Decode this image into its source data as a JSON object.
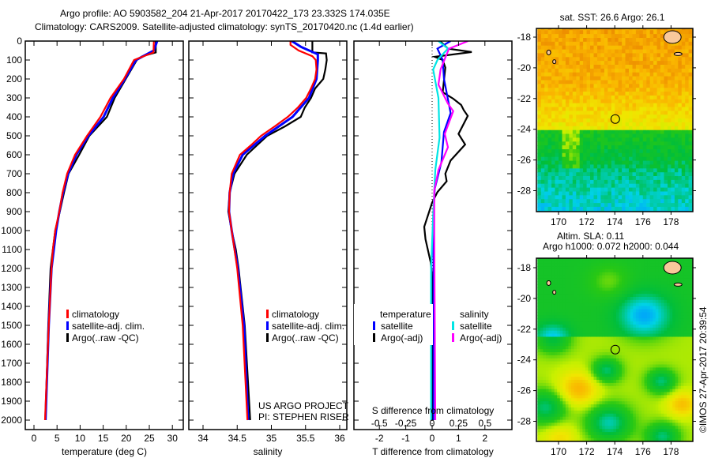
{
  "header": {
    "line1": "Argo profile: AO 5903582_204 21-Apr-2017 20170422_173 23.332S 174.035E",
    "line2": "Climatology: CARS2009. Satellite-adjusted climatology: synTS_20170420.nc (1.4d earlier)"
  },
  "colors": {
    "climatology": "#ff0000",
    "satellite": "#0000ff",
    "argo": "#000000",
    "sal_satellite": "#00e5e5",
    "sal_argo": "#ff00ff"
  },
  "credits": {
    "project": "US ARGO PROJECT",
    "pi": "PI: STEPHEN RISER",
    "copyright": "©IMOS 27-Apr-2017 20:39:54"
  },
  "chart_data": [
    {
      "type": "line",
      "title": "",
      "xlabel": "temperature (deg C)",
      "ylabel": "",
      "xlim": [
        -1.8,
        32.3
      ],
      "ylim": [
        2050,
        0
      ],
      "xticks": [
        "0",
        "5",
        "10",
        "15",
        "20",
        "25",
        "30"
      ],
      "yticks": [
        "0",
        "100",
        "200",
        "300",
        "400",
        "500",
        "600",
        "700",
        "800",
        "900",
        "1000",
        "1100",
        "1200",
        "1300",
        "1400",
        "1500",
        "1600",
        "1700",
        "1800",
        "1900",
        "2000"
      ],
      "legend": [
        "climatology",
        "satellite-adj. clim.",
        "Argo(..raw -QC)"
      ],
      "legend_placement": "lower-center",
      "series": [
        {
          "name": "climatology",
          "depth": [
            0,
            60,
            100,
            200,
            300,
            400,
            500,
            600,
            700,
            800,
            900,
            1000,
            1100,
            1200,
            1500,
            2000
          ],
          "values": [
            26.0,
            25.9,
            21.7,
            19.5,
            16.6,
            14.4,
            11.5,
            8.9,
            7.2,
            6.2,
            5.5,
            4.6,
            4.1,
            3.8,
            3.2,
            2.4
          ]
        },
        {
          "name": "satellite-adj. clim.",
          "depth": [
            0,
            50,
            100,
            200,
            300,
            400,
            500,
            600,
            700,
            800,
            900,
            1000,
            1200,
            1500,
            2000
          ],
          "values": [
            26.7,
            26.0,
            22.1,
            19.7,
            17.1,
            15.1,
            11.8,
            9.2,
            7.4,
            6.3,
            5.5,
            4.8,
            3.8,
            3.2,
            2.5
          ]
        },
        {
          "name": "Argo(..raw -QC)",
          "depth": [
            0,
            60,
            80,
            100,
            200,
            300,
            400,
            500,
            600,
            700,
            800,
            900,
            1000,
            1200,
            1500,
            2000
          ],
          "values": [
            26.4,
            26.4,
            23.5,
            22.3,
            19.9,
            17.5,
            15.8,
            12.0,
            9.8,
            7.5,
            6.5,
            5.6,
            4.6,
            3.6,
            3.1,
            2.5
          ]
        }
      ]
    },
    {
      "type": "line",
      "xlabel": "salinity",
      "xlim": [
        33.79,
        36.1
      ],
      "ylim": [
        2050,
        0
      ],
      "xticks": [
        "34",
        "34.5",
        "35",
        "35.5",
        "36"
      ],
      "legend": [
        "climatology",
        "satellite-adj. clim.",
        "Argo(..raw -QC)"
      ],
      "legend_placement": "lower-center",
      "series": [
        {
          "name": "climatology",
          "depth": [
            0,
            20,
            50,
            80,
            100,
            150,
            200,
            250,
            300,
            350,
            400,
            450,
            500,
            550,
            600,
            700,
            800,
            900,
            1000,
            1100,
            1200,
            1500,
            2000
          ],
          "values": [
            35.28,
            35.28,
            35.4,
            35.6,
            35.65,
            35.66,
            35.64,
            35.58,
            35.51,
            35.39,
            35.24,
            35.05,
            34.85,
            34.7,
            34.54,
            34.42,
            34.39,
            34.38,
            34.42,
            34.46,
            34.5,
            34.58,
            34.65
          ]
        },
        {
          "name": "satellite-adj. clim.",
          "depth": [
            0,
            30,
            70,
            100,
            200,
            300,
            400,
            500,
            600,
            700,
            800,
            900,
            1000,
            1200,
            1500,
            2000
          ],
          "values": [
            35.3,
            35.43,
            35.68,
            35.68,
            35.66,
            35.55,
            35.31,
            34.91,
            34.58,
            34.44,
            34.39,
            34.38,
            34.42,
            34.51,
            34.6,
            34.66
          ]
        },
        {
          "name": "Argo(..raw -QC)",
          "depth": [
            0,
            60,
            65,
            100,
            150,
            200,
            250,
            300,
            350,
            400,
            450,
            500,
            550,
            600,
            700,
            800,
            900,
            1000,
            1100,
            1200,
            1500,
            2000
          ],
          "values": [
            35.6,
            35.6,
            35.8,
            35.81,
            35.79,
            35.76,
            35.64,
            35.58,
            35.49,
            35.43,
            35.2,
            34.94,
            34.79,
            34.64,
            34.46,
            34.39,
            34.37,
            34.42,
            34.48,
            34.52,
            34.61,
            34.69
          ]
        }
      ]
    },
    {
      "type": "line",
      "xlabel": "T difference from climatology",
      "xlabel2": "S difference from climatology",
      "xlim": [
        -2.95,
        3.05
      ],
      "ylim": [
        2050,
        0
      ],
      "xticks": [
        "-2",
        "-1",
        "0",
        "1",
        "2"
      ],
      "xticks2": [
        "-0.5",
        "-0.25",
        "0",
        "0.25",
        "0.5"
      ],
      "legend_headers": [
        "temperature",
        "salinity"
      ],
      "legend": [
        "satellite",
        "Argo(-adj)",
        "satellite",
        "Argo(-adj)"
      ],
      "series": [
        {
          "name": "temperature satellite",
          "depth": [
            0,
            40,
            100,
            200,
            380,
            480,
            640,
            780,
            920,
            2000
          ],
          "values": [
            0.7,
            0.2,
            0.4,
            0.45,
            0.7,
            0.45,
            0.35,
            0.1,
            0.05,
            0.05
          ]
        },
        {
          "name": "temperature Argo(-adj)",
          "depth": [
            0,
            40,
            58,
            83,
            100,
            140,
            270,
            304,
            337,
            365,
            395,
            490,
            546,
            630,
            700,
            740,
            797,
            852,
            980,
            1046,
            1170,
            1250,
            2000
          ],
          "values": [
            0.3,
            0.6,
            1.5,
            0.1,
            0.4,
            0.5,
            0.4,
            0.8,
            1.1,
            1.2,
            1.35,
            1.0,
            1.25,
            0.7,
            0.5,
            0.55,
            0.2,
            0.0,
            -0.3,
            -0.25,
            -0.05,
            0.0,
            0.0
          ]
        },
        {
          "name": "salinity satellite",
          "depth": [
            0,
            40,
            100,
            150,
            300,
            510,
            680,
            920,
            1200,
            2000
          ],
          "values": [
            0.06,
            0.15,
            0.05,
            0.01,
            0.06,
            0.07,
            0.03,
            0.01,
            -0.01,
            -0.01
          ]
        },
        {
          "name": "salinity Argo(-adj)",
          "depth": [
            0,
            40,
            80,
            150,
            230,
            330,
            370,
            490,
            560,
            680,
            790,
            1000,
            2000
          ],
          "values": [
            0.34,
            0.16,
            0.13,
            0.08,
            0.06,
            0.15,
            0.2,
            0.12,
            0.15,
            0.06,
            0.02,
            0.02,
            0.03
          ]
        }
      ]
    },
    {
      "type": "heatmap",
      "title": "sat. SST: 26.6 Argo: 26.1",
      "xlim": [
        168.5,
        179.6
      ],
      "ylim": [
        -29.4,
        -17.4
      ],
      "xticks": [
        "170",
        "172",
        "174",
        "176",
        "178"
      ],
      "yticks": [
        "-18",
        "-20",
        "-22",
        "-24",
        "-26",
        "-28"
      ],
      "marker": {
        "lon": 174.035,
        "lat": -23.332
      }
    },
    {
      "type": "heatmap",
      "title": "Altim. SLA: 0.11",
      "subtitle": "Argo h1000: 0.072 h2000: 0.044",
      "xlim": [
        168.5,
        179.6
      ],
      "ylim": [
        -29.4,
        -17.4
      ],
      "xticks": [
        "170",
        "172",
        "174",
        "176",
        "178"
      ],
      "yticks": [
        "-18",
        "-20",
        "-22",
        "-24",
        "-26",
        "-28"
      ],
      "marker": {
        "lon": 174.035,
        "lat": -23.332
      }
    }
  ]
}
